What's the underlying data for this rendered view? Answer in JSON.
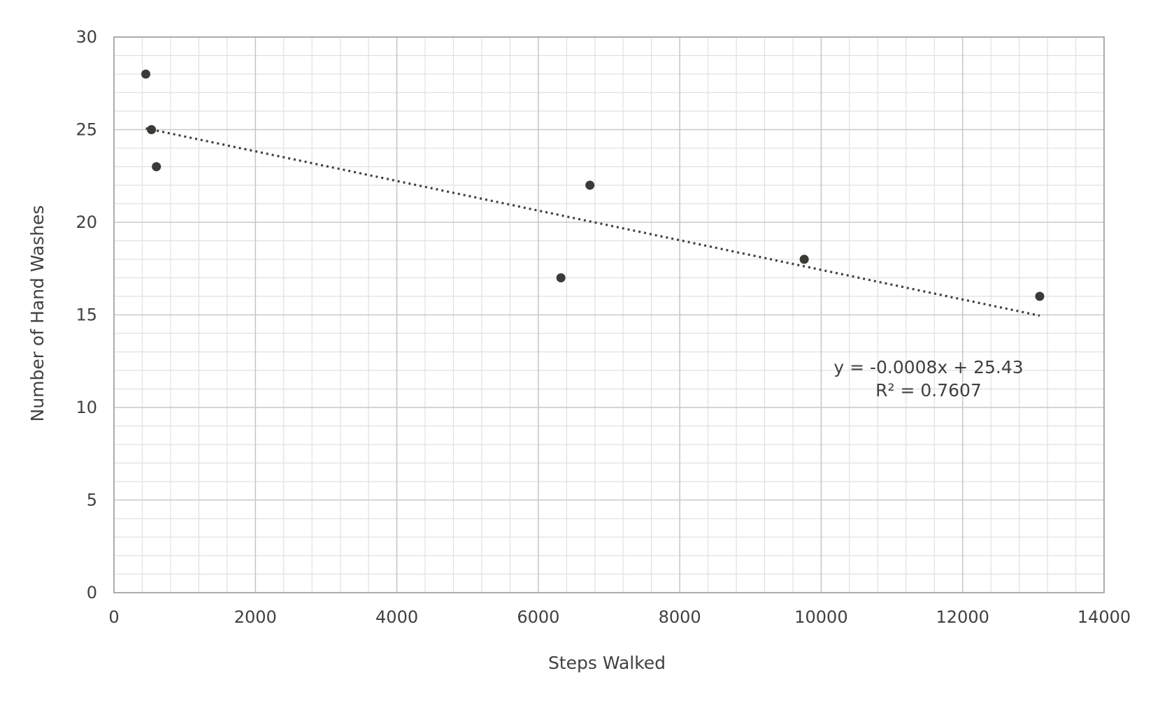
{
  "chart_data": {
    "type": "scatter",
    "xlabel": "Steps Walked",
    "ylabel": "Number of Hand Washes",
    "xlim": [
      0,
      14000
    ],
    "ylim": [
      0,
      30
    ],
    "x_major_step": 2000,
    "x_minor_step": 400,
    "y_major_step": 5,
    "y_minor_step": 1,
    "x_ticks": [
      "0",
      "2000",
      "4000",
      "6000",
      "8000",
      "10000",
      "12000",
      "14000"
    ],
    "y_ticks": [
      "0",
      "5",
      "10",
      "15",
      "20",
      "25",
      "30"
    ],
    "grid": true,
    "legend": "none",
    "colors": {
      "marker": "#3a3a36",
      "trendline": "#404040",
      "grid_major": "#c8c8c8",
      "grid_minor": "#e0e0e0",
      "axis": "#a6a6a6"
    },
    "series": [
      {
        "points": [
          {
            "x": 450,
            "y": 28
          },
          {
            "x": 530,
            "y": 25
          },
          {
            "x": 600,
            "y": 23
          },
          {
            "x": 6320,
            "y": 17
          },
          {
            "x": 6730,
            "y": 22
          },
          {
            "x": 9760,
            "y": 18
          },
          {
            "x": 13090,
            "y": 16
          }
        ]
      }
    ],
    "trendline": {
      "type": "linear",
      "style": "dotted",
      "slope": -0.0008,
      "intercept": 25.43,
      "x_range": [
        450,
        13090
      ],
      "equation": "y = -0.0008x + 25.43",
      "r_squared": "R² = 0.7607"
    }
  }
}
